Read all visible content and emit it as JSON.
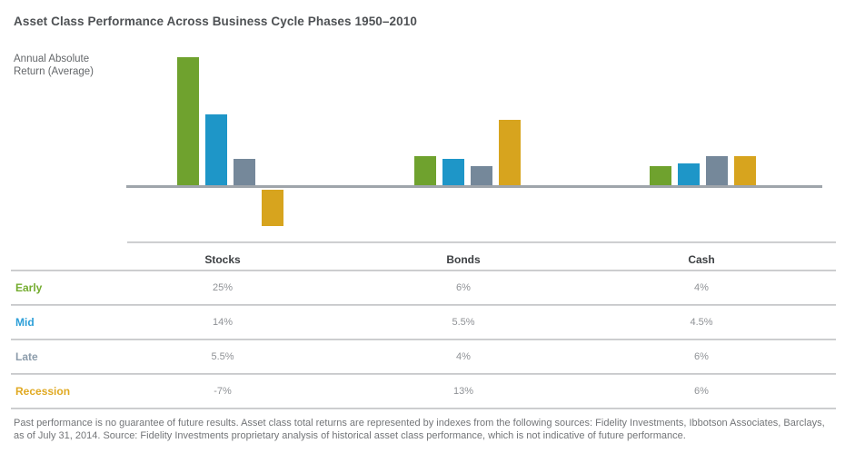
{
  "title": "Asset Class Performance Across Business Cycle Phases 1950–2010",
  "y_axis": {
    "line1": "Annual Absolute",
    "line2": "Return (Average)"
  },
  "footnote": "Past performance is no guarantee of future results. Asset class total returns are represented by indexes from the following sources: Fidelity Investments, Ibbotson Associates, Barclays, as of July 31, 2014. Source: Fidelity Investments proprietary analysis of historical asset class performance, which is not indicative of future performance.",
  "colors": {
    "early_green": "#6fa22e",
    "mid_blue": "#1e96c8",
    "late_slate": "#75889a",
    "recession_gold": "#d7a41e",
    "early_label": "#74ac2f",
    "mid_label": "#2d9fd8",
    "late_label": "#8c9cab",
    "recession_label": "#e0a922",
    "axis_line": "#9fa5ab",
    "separator": "#c9cacc",
    "title_text": "#4e5154",
    "value_text": "#8f9296"
  },
  "chart_data": {
    "type": "bar",
    "title": "Asset Class Performance Across Business Cycle Phases 1950–2010",
    "ylabel": "Annual Absolute Return (Average)",
    "xlabel": "",
    "unit": "%",
    "grid": false,
    "legend_position": "table-below",
    "baseline": 0,
    "ylim": [
      -10,
      27
    ],
    "categories": [
      "Stocks",
      "Bonds",
      "Cash"
    ],
    "series": [
      {
        "name": "Early",
        "color": "#6fa22e",
        "values": [
          25,
          6,
          4
        ]
      },
      {
        "name": "Mid",
        "color": "#1e96c8",
        "values": [
          14,
          5.5,
          4.5
        ]
      },
      {
        "name": "Late",
        "color": "#75889a",
        "values": [
          5.5,
          4,
          6
        ]
      },
      {
        "name": "Recession",
        "color": "#d7a41e",
        "values": [
          -7,
          13,
          6
        ]
      }
    ]
  },
  "table": {
    "columns": [
      "Stocks",
      "Bonds",
      "Cash"
    ],
    "rows": [
      {
        "label": "Early",
        "label_color": "#74ac2f",
        "values": [
          "25%",
          "6%",
          "4%"
        ]
      },
      {
        "label": "Mid",
        "label_color": "#2d9fd8",
        "values": [
          "14%",
          "5.5%",
          "4.5%"
        ]
      },
      {
        "label": "Late",
        "label_color": "#8c9cab",
        "values": [
          "5.5%",
          "4%",
          "6%"
        ]
      },
      {
        "label": "Recession",
        "label_color": "#e0a922",
        "values": [
          "-7%",
          "13%",
          "6%"
        ]
      }
    ]
  }
}
